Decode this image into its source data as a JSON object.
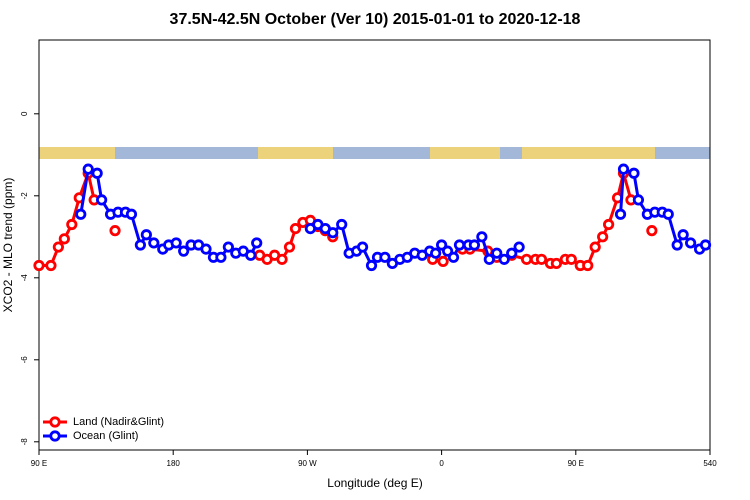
{
  "chart_data": {
    "type": "line",
    "title": "37.5N-42.5N October (Ver 10)   2015-01-01 to 2020-12-18",
    "x_label": "Longitude (deg E)",
    "y_label": "XCO2 - MLO trend (ppm)",
    "xlim": [
      90,
      540
    ],
    "ylim": [
      -8.2,
      1.8
    ],
    "xticks": [
      {
        "value": 90,
        "label": "90 E"
      },
      180,
      {
        "value": 270,
        "label": "90 W"
      },
      {
        "value": 360,
        "label": "0"
      },
      {
        "value": 450,
        "label": "90 E"
      },
      540
    ],
    "yticks": [
      0,
      -2,
      -4,
      -6,
      -8
    ],
    "legend": "bottomleft",
    "series": [
      {
        "name": "Land (Nadir&Glint)",
        "color": "#ff0000",
        "x": [
          90,
          98,
          103,
          107,
          112,
          117,
          123,
          127,
          134,
          141,
          200,
          238,
          243,
          248,
          253,
          258,
          262,
          267,
          272,
          277,
          282,
          287,
          300,
          354,
          361,
          365,
          374,
          379,
          391,
          397,
          407,
          417,
          423,
          427,
          433,
          437,
          443,
          447,
          453,
          458,
          463,
          468,
          472,
          478,
          482,
          487,
          495,
          501
        ],
        "values": [
          -3.7,
          -3.7,
          -3.25,
          -3.05,
          -2.7,
          -2.05,
          -1.45,
          -2.1,
          null,
          -2.85,
          null,
          -3.45,
          -3.55,
          -3.45,
          -3.55,
          -3.25,
          -2.8,
          -2.65,
          -2.6,
          -2.75,
          -2.85,
          -3.0,
          null,
          -3.55,
          -3.6,
          null,
          -3.3,
          -3.3,
          -3.35,
          -3.5,
          -3.45,
          -3.55,
          -3.55,
          -3.55,
          -3.65,
          -3.65,
          -3.55,
          -3.55,
          -3.7,
          -3.7,
          -3.25,
          -3.0,
          -2.7,
          -2.05,
          -1.45,
          -2.1,
          null,
          -2.85
        ]
      },
      {
        "name": "Ocean (Glint)",
        "color": "#0000ff",
        "x": [
          118,
          123,
          129,
          132,
          138,
          143,
          148,
          152,
          158,
          162,
          167,
          173,
          177,
          182,
          187,
          192,
          197,
          202,
          207,
          212,
          217,
          222,
          227,
          232,
          236,
          250,
          272,
          277,
          282,
          287,
          293,
          298,
          303,
          307,
          313,
          317,
          322,
          327,
          332,
          337,
          342,
          347,
          352,
          356,
          360,
          364,
          368,
          372,
          378,
          382,
          387,
          392,
          397,
          402,
          407,
          412,
          450,
          480,
          482,
          489,
          492,
          498,
          503,
          508,
          512,
          518,
          522,
          527,
          533,
          537
        ],
        "values": [
          -2.45,
          -1.35,
          -1.45,
          -2.1,
          -2.45,
          -2.4,
          -2.4,
          -2.45,
          -3.2,
          -2.95,
          -3.15,
          -3.3,
          -3.2,
          -3.15,
          -3.35,
          -3.2,
          -3.2,
          -3.3,
          -3.5,
          -3.5,
          -3.25,
          -3.4,
          -3.35,
          -3.45,
          -3.15,
          null,
          -2.8,
          -2.7,
          -2.8,
          -2.9,
          -2.7,
          -3.4,
          -3.35,
          -3.25,
          -3.7,
          -3.5,
          -3.5,
          -3.65,
          -3.55,
          -3.5,
          -3.4,
          -3.45,
          -3.35,
          -3.4,
          -3.2,
          -3.35,
          -3.5,
          -3.2,
          -3.2,
          -3.2,
          -3.0,
          -3.55,
          -3.4,
          -3.55,
          -3.4,
          -3.25,
          null,
          -2.45,
          -1.35,
          -1.45,
          -2.1,
          -2.45,
          -2.4,
          -2.4,
          -2.45,
          -3.2,
          -2.95,
          -3.15,
          -3.3,
          -3.2
        ]
      }
    ]
  }
}
